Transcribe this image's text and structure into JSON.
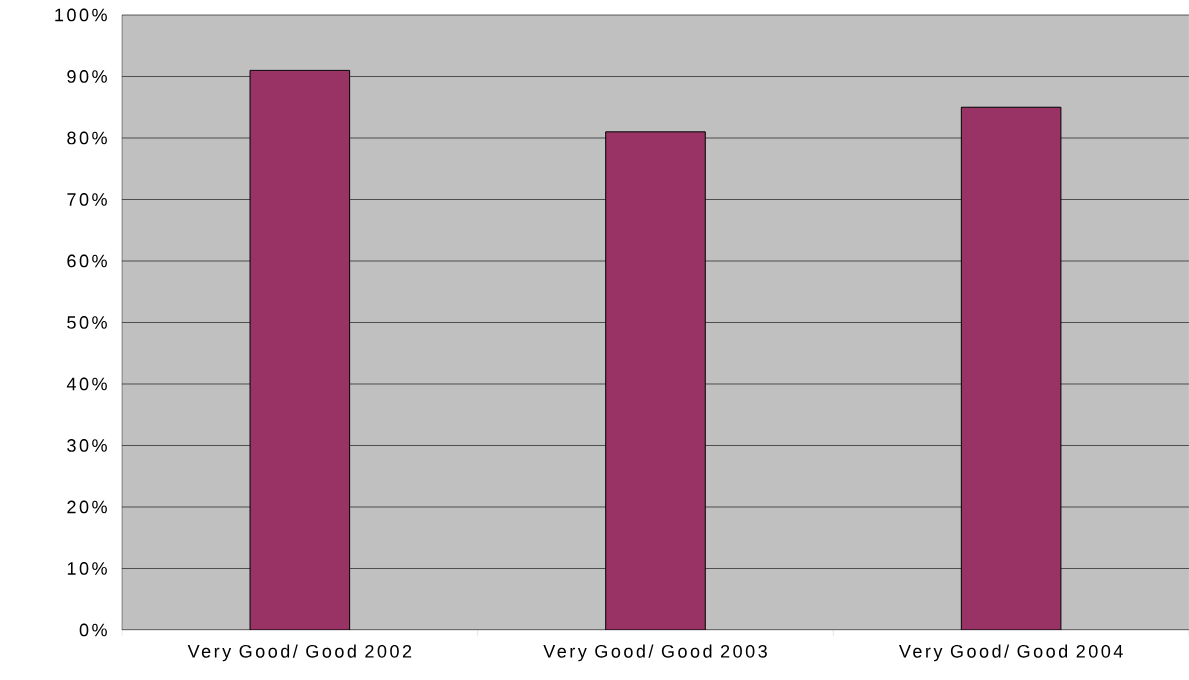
{
  "chart_data": {
    "type": "bar",
    "categories": [
      "Very Good/ Good 2002",
      "Very Good/ Good 2003",
      "Very Good/ Good 2004"
    ],
    "values": [
      91,
      81,
      85
    ],
    "color": "#993366",
    "ylim": [
      0,
      100
    ],
    "yticks": [
      {
        "value": 0,
        "label": "0%"
      },
      {
        "value": 10,
        "label": "10%"
      },
      {
        "value": 20,
        "label": "20%"
      },
      {
        "value": 30,
        "label": "30%"
      },
      {
        "value": 40,
        "label": "40%"
      },
      {
        "value": 50,
        "label": "50%"
      },
      {
        "value": 60,
        "label": "60%"
      },
      {
        "value": 70,
        "label": "70%"
      },
      {
        "value": 80,
        "label": "80%"
      },
      {
        "value": 90,
        "label": "90%"
      },
      {
        "value": 100,
        "label": "100%"
      }
    ],
    "grid": "y"
  }
}
